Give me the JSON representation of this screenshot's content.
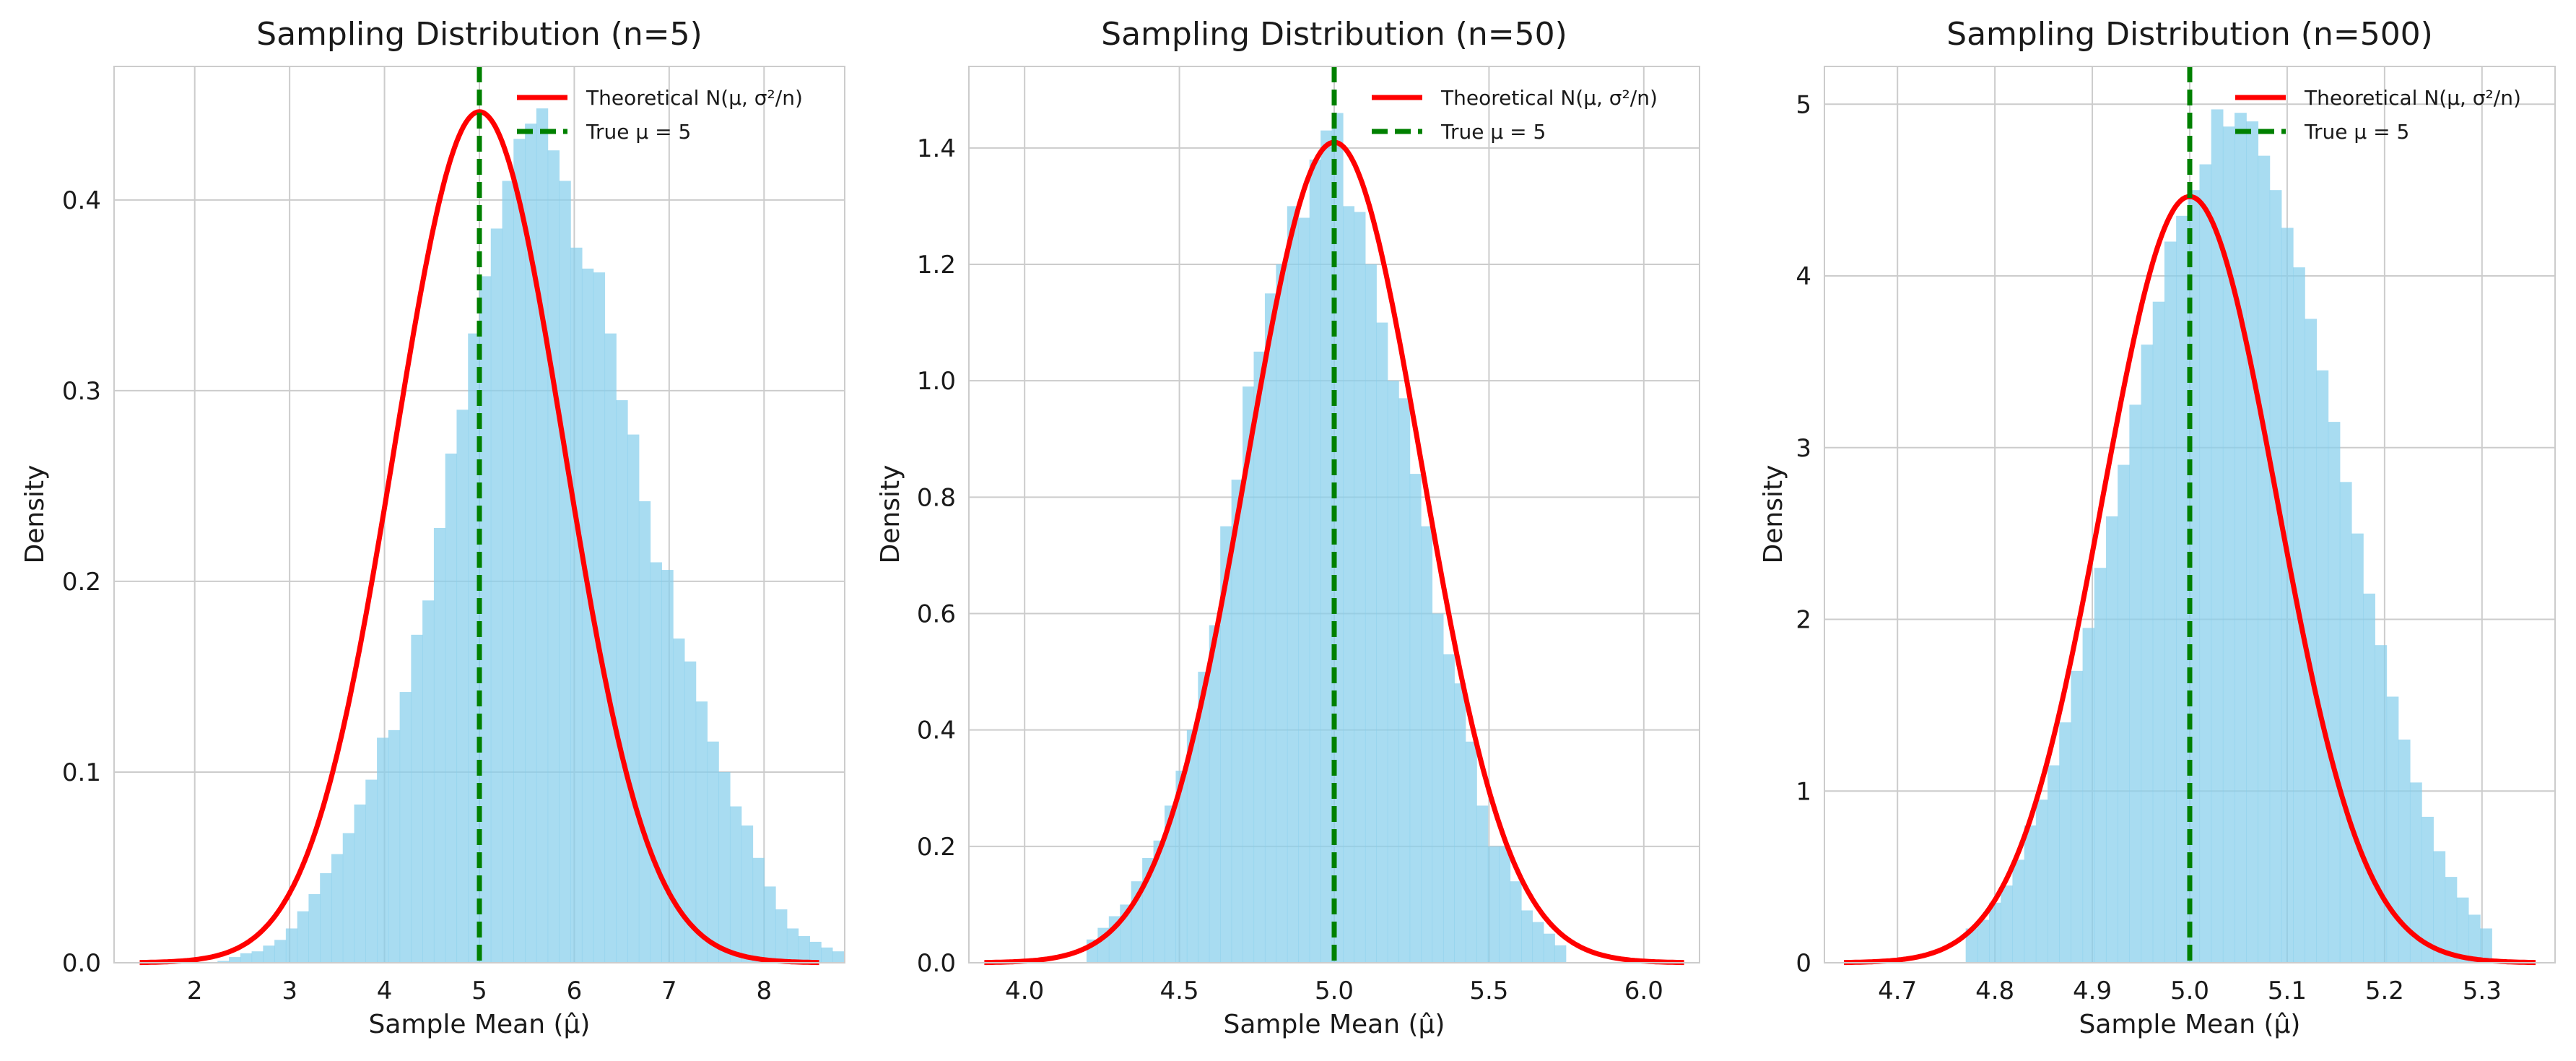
{
  "chart_data": [
    {
      "type": "histogram",
      "title": "Sampling Distribution (n=5)",
      "xlabel": "Sample Mean (μ̂)",
      "ylabel": "Density",
      "xlim": [
        1.15,
        8.85
      ],
      "ylim": [
        0,
        0.47
      ],
      "xticks": [
        2,
        3,
        4,
        5,
        6,
        7,
        8
      ],
      "yticks": [
        0.0,
        0.1,
        0.2,
        0.3,
        0.4
      ],
      "ytick_decimals": 1,
      "grid": true,
      "legend_position": "top-right",
      "theory": {
        "label": "Theoretical N(μ, σ²/n)",
        "mu": 5,
        "sigma": 0.894,
        "x_range": [
          1.42,
          8.58
        ],
        "color": "#ff0000"
      },
      "true_mean": {
        "label": "True μ = 5",
        "x": 5,
        "color": "#008000"
      },
      "histogram": {
        "color": "#87ceeb",
        "bin_width": 0.12,
        "bins_start": 2.24,
        "densities": [
          0.001,
          0.003,
          0.005,
          0.006,
          0.009,
          0.012,
          0.018,
          0.027,
          0.036,
          0.047,
          0.057,
          0.068,
          0.083,
          0.096,
          0.118,
          0.122,
          0.142,
          0.172,
          0.19,
          0.228,
          0.267,
          0.29,
          0.33,
          0.36,
          0.385,
          0.41,
          0.432,
          0.44,
          0.448,
          0.426,
          0.41,
          0.375,
          0.364,
          0.362,
          0.33,
          0.295,
          0.277,
          0.242,
          0.21,
          0.206,
          0.17,
          0.158,
          0.137,
          0.116,
          0.1,
          0.082,
          0.072,
          0.055,
          0.04,
          0.028,
          0.018,
          0.014,
          0.011,
          0.008,
          0.006
        ]
      }
    },
    {
      "type": "histogram",
      "title": "Sampling Distribution (n=50)",
      "xlabel": "Sample Mean (μ̂)",
      "ylabel": "Density",
      "xlim": [
        3.82,
        6.18
      ],
      "ylim": [
        0,
        1.54
      ],
      "xticks": [
        4.0,
        4.5,
        5.0,
        5.5,
        6.0
      ],
      "yticks": [
        0.0,
        0.2,
        0.4,
        0.6,
        0.8,
        1.0,
        1.2,
        1.4
      ],
      "ytick_decimals": 1,
      "grid": true,
      "legend_position": "top-right",
      "theory": {
        "label": "Theoretical N(μ, σ²/n)",
        "mu": 5,
        "sigma": 0.283,
        "x_range": [
          3.87,
          6.13
        ],
        "color": "#ff0000"
      },
      "true_mean": {
        "label": "True μ = 5",
        "x": 5,
        "color": "#008000"
      },
      "histogram": {
        "color": "#87ceeb",
        "bin_width": 0.036,
        "bins_start": 4.2,
        "densities": [
          0.04,
          0.06,
          0.08,
          0.1,
          0.14,
          0.18,
          0.21,
          0.27,
          0.33,
          0.4,
          0.5,
          0.58,
          0.75,
          0.83,
          0.99,
          1.05,
          1.15,
          1.2,
          1.3,
          1.28,
          1.38,
          1.43,
          1.46,
          1.3,
          1.29,
          1.2,
          1.1,
          1.0,
          0.97,
          0.84,
          0.75,
          0.6,
          0.53,
          0.48,
          0.38,
          0.27,
          0.2,
          0.2,
          0.14,
          0.09,
          0.07,
          0.05,
          0.03
        ]
      }
    },
    {
      "type": "histogram",
      "title": "Sampling Distribution (n=500)",
      "xlabel": "Sample Mean (μ̂)",
      "ylabel": "Density",
      "xlim": [
        4.625,
        5.375
      ],
      "ylim": [
        0,
        5.22
      ],
      "xticks": [
        4.7,
        4.8,
        4.9,
        5.0,
        5.1,
        5.2,
        5.3
      ],
      "yticks": [
        0,
        1,
        2,
        3,
        4,
        5
      ],
      "ytick_decimals": 0,
      "grid": true,
      "legend_position": "top-right",
      "theory": {
        "label": "Theoretical N(μ, σ²/n)",
        "mu": 5,
        "sigma": 0.0894,
        "x_range": [
          4.645,
          5.355
        ],
        "color": "#ff0000"
      },
      "true_mean": {
        "label": "True μ = 5",
        "x": 5,
        "color": "#008000"
      },
      "histogram": {
        "color": "#87ceeb",
        "bin_width": 0.012,
        "bins_start": 4.77,
        "densities": [
          0.2,
          0.25,
          0.35,
          0.45,
          0.6,
          0.8,
          0.95,
          1.15,
          1.4,
          1.7,
          1.95,
          2.3,
          2.6,
          2.9,
          3.25,
          3.6,
          3.85,
          4.2,
          4.35,
          4.5,
          4.65,
          4.97,
          4.87,
          4.95,
          4.9,
          4.7,
          4.5,
          4.28,
          4.05,
          3.75,
          3.45,
          3.15,
          2.8,
          2.5,
          2.15,
          1.85,
          1.55,
          1.3,
          1.05,
          0.85,
          0.65,
          0.5,
          0.38,
          0.28,
          0.2
        ]
      }
    }
  ]
}
